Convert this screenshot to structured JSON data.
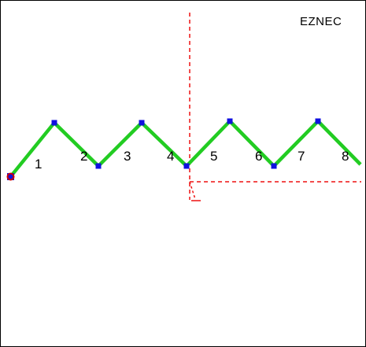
{
  "window": {
    "app_label": "EZNEC"
  },
  "antenna": {
    "wire_color": "#22cc22",
    "node_color": "#1010e0",
    "source_color": "#cc0000",
    "axis_color": "#ee1111",
    "segments": [
      {
        "label": "1"
      },
      {
        "label": "2"
      },
      {
        "label": "3"
      },
      {
        "label": "4"
      },
      {
        "label": "5"
      },
      {
        "label": "6"
      },
      {
        "label": "7"
      },
      {
        "label": "8"
      }
    ],
    "icons": {
      "source": "source-marker-icon",
      "node": "wire-node-icon"
    }
  }
}
